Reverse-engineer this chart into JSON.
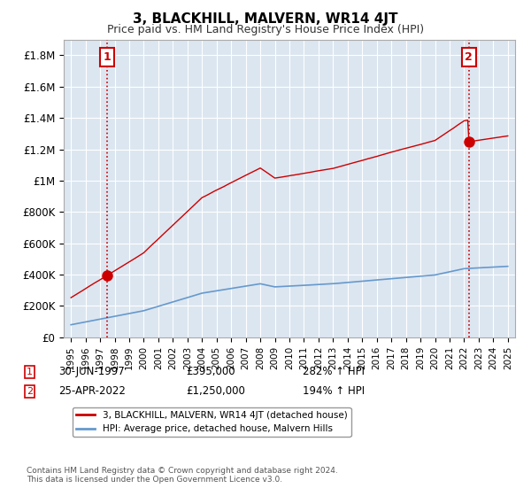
{
  "title": "3, BLACKHILL, MALVERN, WR14 4JT",
  "subtitle": "Price paid vs. HM Land Registry's House Price Index (HPI)",
  "legend_line1": "3, BLACKHILL, MALVERN, WR14 4JT (detached house)",
  "legend_line2": "HPI: Average price, detached house, Malvern Hills",
  "sale1_date": "30-JUN-1997",
  "sale1_price": 395000,
  "sale1_label": "282% ↑ HPI",
  "sale1_marker": 1,
  "sale2_date": "25-APR-2022",
  "sale2_price": 1250000,
  "sale2_label": "194% ↑ HPI",
  "sale2_marker": 2,
  "footer": "Contains HM Land Registry data © Crown copyright and database right 2024.\nThis data is licensed under the Open Government Licence v3.0.",
  "ylim": [
    0,
    1900000
  ],
  "yticks": [
    0,
    200000,
    400000,
    600000,
    800000,
    1000000,
    1200000,
    1400000,
    1600000,
    1800000
  ],
  "ylabel_map": [
    "£0",
    "£200K",
    "£400K",
    "£600K",
    "£800K",
    "£1M",
    "£1.2M",
    "£1.4M",
    "£1.6M",
    "£1.8M"
  ],
  "background_color": "#dce6f1",
  "plot_bg": "#dce6f1",
  "red_color": "#cc0000",
  "blue_color": "#6699cc",
  "grid_color": "#ffffff",
  "annotation_box_color": "#cc0000"
}
